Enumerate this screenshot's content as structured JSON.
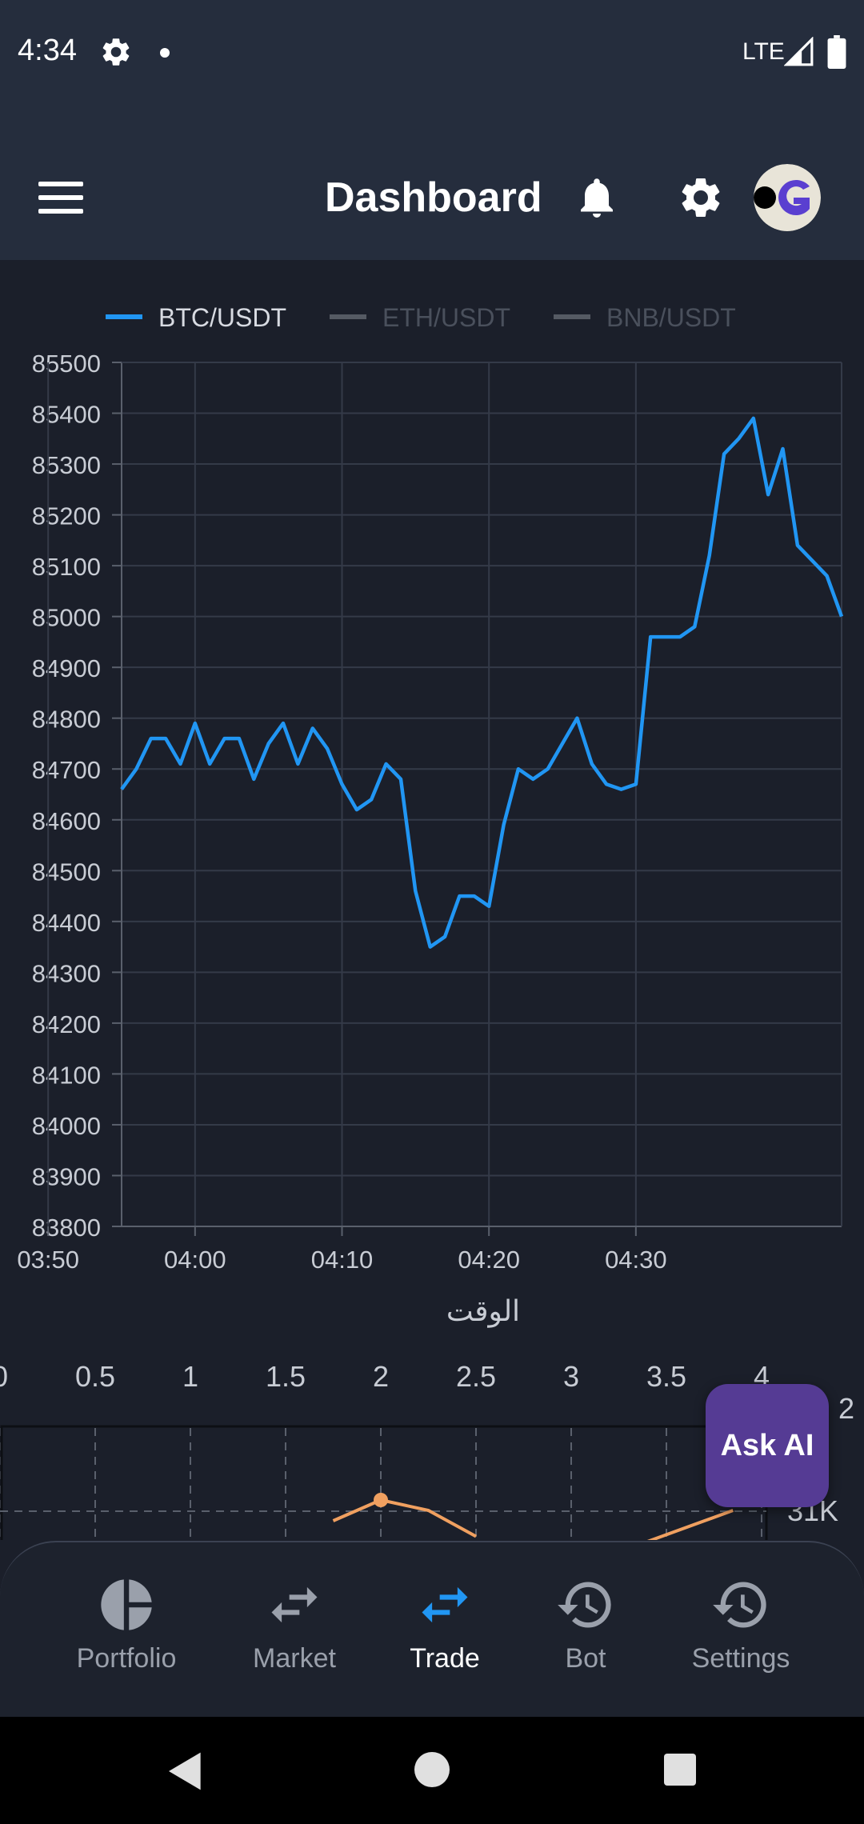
{
  "status_bar": {
    "time": "4:34",
    "network": "LTE"
  },
  "app_bar": {
    "title": "Dashboard",
    "icons": [
      "menu-icon",
      "bell-icon",
      "gear-icon",
      "avatar"
    ]
  },
  "colors": {
    "background": "#1b1f2a",
    "header": "#252d3d",
    "btc_line": "#2196f3",
    "second_series": "#f0a060",
    "ask_ai": "#553b94",
    "active_nav": "#2196f3"
  },
  "chart_data": [
    {
      "type": "line",
      "legend": [
        {
          "name": "BTC/USDT",
          "active": true,
          "color": "#2196f3"
        },
        {
          "name": "ETH/USDT",
          "active": false,
          "color": "#555a63"
        },
        {
          "name": "BNB/USDT",
          "active": false,
          "color": "#555a63"
        }
      ],
      "xlabel": "الوقت",
      "ylabel": "",
      "ylim": [
        83800,
        85500
      ],
      "yticks": [
        "85500",
        "85400",
        "85300",
        "85200",
        "85100",
        "85000",
        "84900",
        "84800",
        "84700",
        "84600",
        "84500",
        "84400",
        "84300",
        "84200",
        "84100",
        "84000",
        "83900",
        "83800"
      ],
      "xticks": [
        "03:50",
        "04:00",
        "04:10",
        "04:20",
        "04:30"
      ],
      "x_range_minutes": [
        -5,
        44
      ],
      "grid": true,
      "series": [
        {
          "name": "BTC/USDT",
          "points": [
            [
              -5,
              84660
            ],
            [
              -4,
              84700
            ],
            [
              -3,
              84760
            ],
            [
              -2,
              84760
            ],
            [
              -1,
              84710
            ],
            [
              0,
              84790
            ],
            [
              1,
              84710
            ],
            [
              2,
              84760
            ],
            [
              3,
              84760
            ],
            [
              4,
              84680
            ],
            [
              5,
              84750
            ],
            [
              6,
              84790
            ],
            [
              7,
              84710
            ],
            [
              8,
              84780
            ],
            [
              9,
              84740
            ],
            [
              10,
              84670
            ],
            [
              11,
              84620
            ],
            [
              12,
              84640
            ],
            [
              13,
              84710
            ],
            [
              14,
              84680
            ],
            [
              15,
              84460
            ],
            [
              16,
              84350
            ],
            [
              17,
              84370
            ],
            [
              18,
              84450
            ],
            [
              19,
              84450
            ],
            [
              20,
              84430
            ],
            [
              21,
              84590
            ],
            [
              22,
              84700
            ],
            [
              23,
              84680
            ],
            [
              24,
              84700
            ],
            [
              25,
              84750
            ],
            [
              26,
              84800
            ],
            [
              27,
              84710
            ],
            [
              28,
              84670
            ],
            [
              29,
              84660
            ],
            [
              30,
              84670
            ],
            [
              31,
              84960
            ],
            [
              32,
              84960
            ],
            [
              33,
              84960
            ],
            [
              34,
              84980
            ],
            [
              35,
              85120
            ],
            [
              36,
              85320
            ],
            [
              37,
              85350
            ],
            [
              38,
              85390
            ],
            [
              39,
              85240
            ],
            [
              40,
              85330
            ],
            [
              41,
              85140
            ],
            [
              42,
              85110
            ],
            [
              43,
              85080
            ],
            [
              44,
              85000
            ]
          ]
        }
      ]
    },
    {
      "type": "line",
      "xticks": [
        "0",
        "0.5",
        "1",
        "1.5",
        "2",
        "2.5",
        "3",
        "3.5",
        "4"
      ],
      "right_labels": [
        "2",
        "31K"
      ],
      "series": [
        {
          "name": "",
          "points": [
            [
              1.75,
              0.6
            ],
            [
              2,
              1.0
            ],
            [
              2.25,
              0.8
            ],
            [
              2.5,
              0.3
            ]
          ]
        },
        {
          "name": "",
          "points": [
            [
              3.4,
              0.2
            ],
            [
              3.7,
              0.6
            ],
            [
              3.85,
              0.8
            ]
          ]
        }
      ]
    }
  ],
  "ask_ai": {
    "label": "Ask AI"
  },
  "bottom_nav": {
    "items": [
      {
        "label": "Portfolio",
        "icon": "pie-chart-icon",
        "active": false
      },
      {
        "label": "Market",
        "icon": "swap-arrows-icon",
        "active": false
      },
      {
        "label": "Trade",
        "icon": "swap-arrows-icon",
        "active": true
      },
      {
        "label": "Bot",
        "icon": "history-icon",
        "active": false
      },
      {
        "label": "Settings",
        "icon": "history-icon",
        "active": false
      }
    ]
  }
}
